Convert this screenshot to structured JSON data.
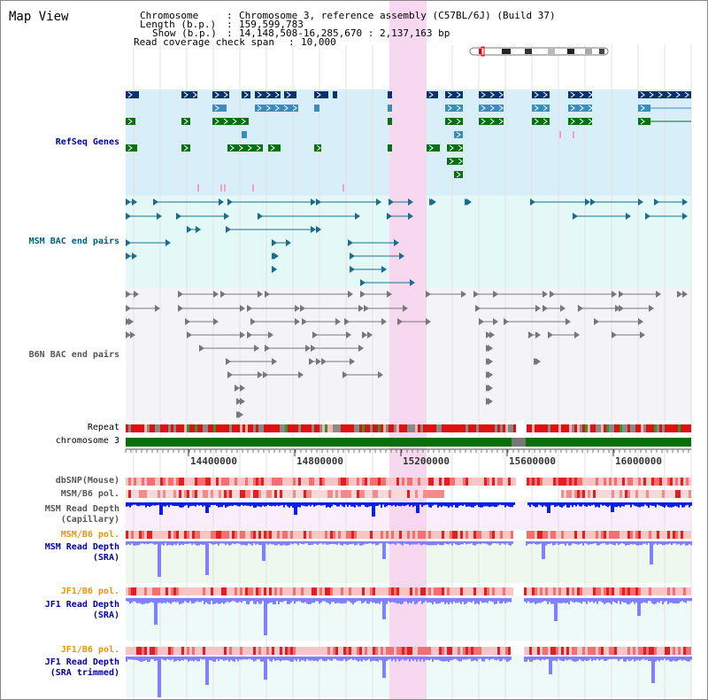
{
  "title": "Map View",
  "header": {
    "chromosome_key": "Chromosome",
    "chromosome_value": "Chromosome 3, reference assembly (C57BL/6J) (Build 37)",
    "length_key": "Length (b.p.)",
    "length_value": "159,599,783",
    "show_key": "Show (b.p.)",
    "show_value": "14,148,508-16,285,670 : 2,137,163 bp",
    "span_key": "Read coverage check span",
    "span_value": "10,000"
  },
  "tracks": {
    "refseq": "RefSeq Genes",
    "msm_bac": "MSM BAC end pairs",
    "b6n_bac": "B6N BAC end pairs",
    "repeat": "Repeat",
    "chromosome": "chromosome 3",
    "dbsnp": "dbSNP(Mouse)",
    "msm_b6_pol_1": "MSM/B6 pol.",
    "msm_depth_cap_1": "MSM Read Depth",
    "msm_depth_cap_2": "(Capillary)",
    "msm_b6_pol_2": "MSM/B6 pol.",
    "msm_depth_sra_1": "MSM Read Depth",
    "msm_depth_sra_2": "(SRA)",
    "jf1_b6_pol_1": "JF1/B6 pol.",
    "jf1_depth_sra_1": "JF1 Read Depth",
    "jf1_depth_sra_2": "(SRA)",
    "jf1_b6_pol_2": "JF1/B6 pol.",
    "jf1_depth_trim_1": "JF1 Read Depth",
    "jf1_depth_trim_2": "(SRA trimmed)"
  },
  "axis": {
    "ticks": [
      "14400000",
      "14800000",
      "15200000",
      "15600000",
      "16000000"
    ]
  },
  "colors": {
    "highlight": "#f8d8f0",
    "refseq_bg": "#d8eef8",
    "msm_bg": "#e4f8f8",
    "b6n_bg": "#f4f4f8",
    "gene_dark": "#0a3270",
    "gene_mid": "#3c8cb8",
    "gene_green": "#0a6e14",
    "bac_teal": "#1a6e8c",
    "bac_gray": "#777777",
    "depth_blue": "#0a1ee6",
    "depth_light": "#8080ff"
  }
}
